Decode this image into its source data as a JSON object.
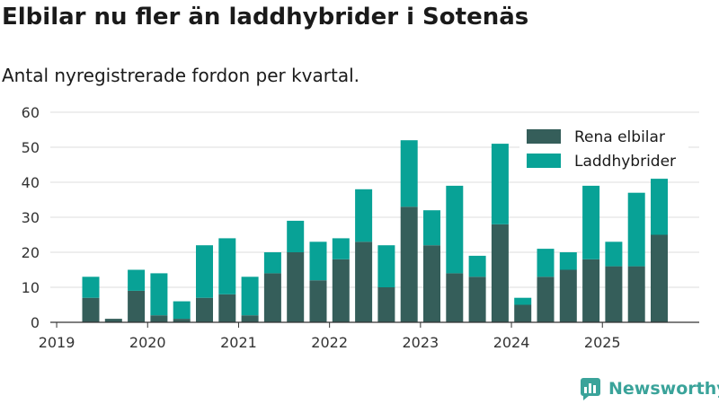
{
  "header": {
    "title": "Elbilar nu fler än laddhybrider i Sotenäs",
    "subtitle": "Antal nyregistrerade fordon per kvartal."
  },
  "brand": {
    "name": "Newsworthy"
  },
  "chart_data": {
    "type": "bar",
    "stacked": true,
    "categories": [
      "2019 Q2",
      "2019 Q3",
      "2019 Q4",
      "2020 Q1",
      "2020 Q2",
      "2020 Q3",
      "2020 Q4",
      "2021 Q1",
      "2021 Q2",
      "2021 Q3",
      "2021 Q4",
      "2022 Q1",
      "2022 Q2",
      "2022 Q3",
      "2022 Q4",
      "2023 Q1",
      "2023 Q2",
      "2023 Q3",
      "2023 Q4",
      "2024 Q1",
      "2024 Q2",
      "2024 Q3",
      "2024 Q4",
      "2025 Q1",
      "2025 Q2",
      "2025 Q3"
    ],
    "series": [
      {
        "name": "Rena elbilar",
        "color": "#355e5a",
        "values": [
          7,
          1,
          9,
          2,
          1,
          7,
          8,
          2,
          14,
          20,
          12,
          18,
          23,
          10,
          33,
          22,
          14,
          13,
          28,
          5,
          13,
          15,
          18,
          16,
          16,
          25
        ]
      },
      {
        "name": "Laddhybrider",
        "color": "#08a296",
        "values": [
          6,
          0,
          6,
          12,
          5,
          15,
          16,
          11,
          6,
          9,
          11,
          6,
          15,
          12,
          19,
          10,
          25,
          6,
          23,
          2,
          8,
          5,
          21,
          7,
          21,
          16
        ]
      }
    ],
    "x_tick_labels": [
      "2019",
      "2020",
      "2021",
      "2022",
      "2023",
      "2024",
      "2025"
    ],
    "y_ticks": [
      0,
      10,
      20,
      30,
      40,
      50,
      60
    ],
    "ylim": [
      0,
      60
    ],
    "grid": true,
    "legend_position": "top-right"
  }
}
